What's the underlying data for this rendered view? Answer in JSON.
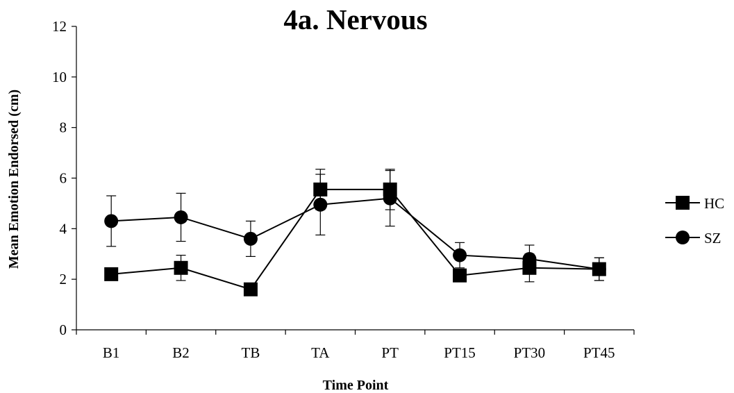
{
  "chart_data": {
    "type": "line",
    "title": "4a. Nervous",
    "xlabel": "Time Point",
    "ylabel": "Mean Emotion Endorsed (cm)",
    "categories": [
      "B1",
      "B2",
      "TB",
      "TA",
      "PT",
      "PT15",
      "PT30",
      "PT45"
    ],
    "ylim": [
      0,
      12
    ],
    "yticks": [
      0,
      2,
      4,
      6,
      8,
      10,
      12
    ],
    "grid": false,
    "legend_position": "right",
    "error_bars": true,
    "series": [
      {
        "name": "HC",
        "marker": "square",
        "color": "#000000",
        "values": [
          2.2,
          2.45,
          1.6,
          5.55,
          5.55,
          2.15,
          2.45,
          2.4
        ],
        "error": [
          0,
          0.5,
          0,
          0.8,
          0.8,
          0,
          0.55,
          0.45
        ]
      },
      {
        "name": "SZ",
        "marker": "circle",
        "color": "#000000",
        "values": [
          4.3,
          4.45,
          3.6,
          4.95,
          5.2,
          2.95,
          2.8,
          2.4
        ],
        "error": [
          1.0,
          0.95,
          0.7,
          1.2,
          1.1,
          0.5,
          0.55,
          0.45
        ]
      }
    ]
  }
}
